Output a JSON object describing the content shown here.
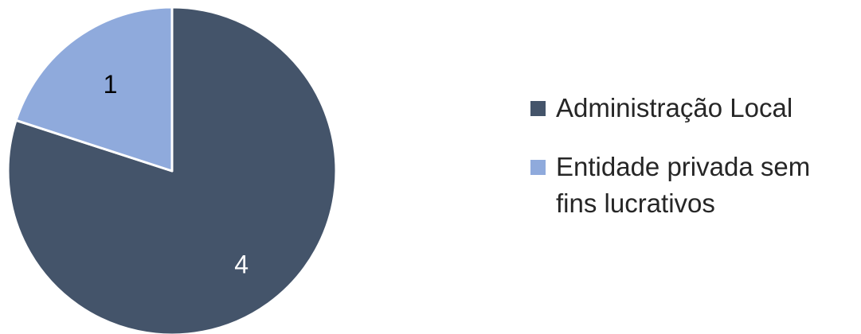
{
  "chart_data": {
    "type": "pie",
    "categories": [
      "Administração Local",
      "Entidade privada sem fins lucrativos"
    ],
    "values": [
      4,
      1
    ],
    "data_labels": [
      "4",
      "1"
    ],
    "colors": [
      "#44546a",
      "#8faadc"
    ],
    "slice_border_color": "#ffffff",
    "label_color": "#000000",
    "title": "",
    "legend": {
      "placement": "right",
      "entries": [
        "Administração Local",
        "Entidade privada sem fins lucrativos"
      ]
    },
    "start_angle": "top, clockwise"
  }
}
